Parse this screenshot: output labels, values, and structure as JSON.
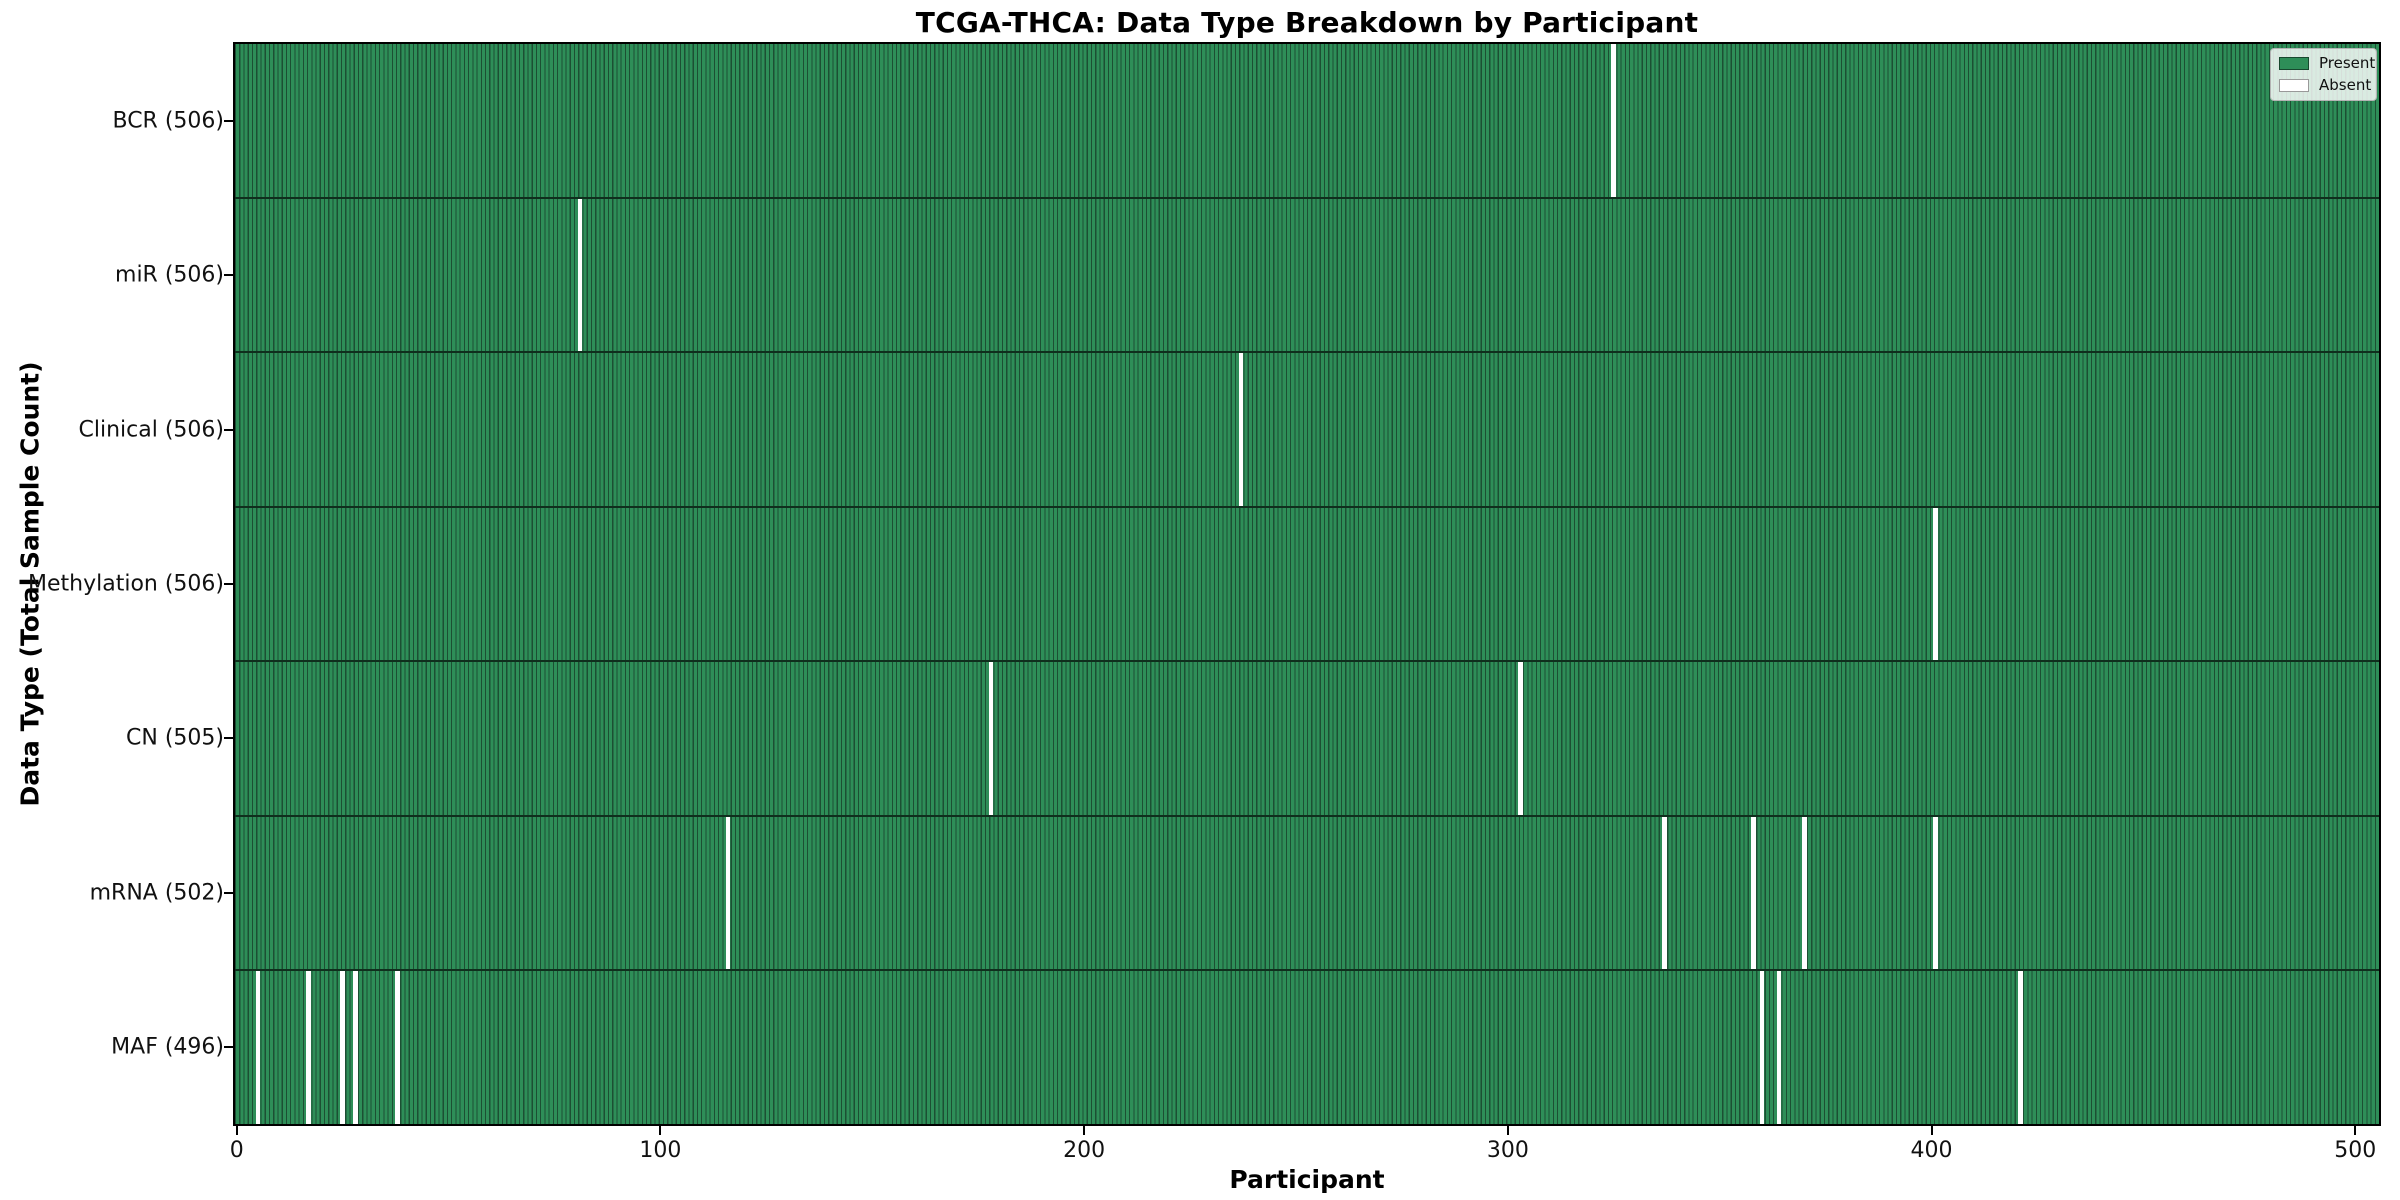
{
  "colors": {
    "present": "#2e8e58",
    "bar_edge": "#1c4f33",
    "absent": "#ffffff",
    "row_separator": "#0f2f1d",
    "spine": "#000000",
    "legend_border": "#b4b4b4",
    "legend_present_edge": "#17482e",
    "legend_absent_edge": "#999999",
    "text": "#111111"
  },
  "legend": {
    "present_label": "Present",
    "absent_label": "Absent"
  },
  "chart_data": {
    "type": "heatmap",
    "title": "TCGA-THCA: Data Type Breakdown by Participant",
    "xlabel": "Participant",
    "ylabel": "Data Type (Total Sample Count)",
    "legend_entries": [
      "Present",
      "Absent"
    ],
    "legend_position": "upper right",
    "grid": false,
    "n_participants": 506,
    "x_axis_range": [
      0,
      506
    ],
    "x_ticks": [
      0,
      100,
      200,
      300,
      400,
      500
    ],
    "rows": [
      {
        "name": "bcr",
        "label": "BCR (506)",
        "data_type": "BCR",
        "total_sample_count": 506,
        "absent_participants": [
          325
        ]
      },
      {
        "name": "mir",
        "label": "miR (506)",
        "data_type": "miR",
        "total_sample_count": 506,
        "absent_participants": [
          81
        ]
      },
      {
        "name": "clinical",
        "label": "Clinical (506)",
        "data_type": "Clinical",
        "total_sample_count": 506,
        "absent_participants": [
          237
        ]
      },
      {
        "name": "methylation",
        "label": "Methylation (506)",
        "data_type": "Methylation",
        "total_sample_count": 506,
        "absent_participants": [
          401
        ]
      },
      {
        "name": "cn",
        "label": "CN (505)",
        "data_type": "CN",
        "total_sample_count": 505,
        "absent_participants": [
          178,
          303
        ]
      },
      {
        "name": "mrna",
        "label": "mRNA (502)",
        "data_type": "mRNA",
        "total_sample_count": 502,
        "absent_participants": [
          116,
          337,
          358,
          370,
          401
        ]
      },
      {
        "name": "maf",
        "label": "MAF (496)",
        "data_type": "MAF",
        "total_sample_count": 496,
        "absent_participants": [
          5,
          17,
          25,
          28,
          38,
          360,
          364,
          421
        ]
      }
    ]
  }
}
